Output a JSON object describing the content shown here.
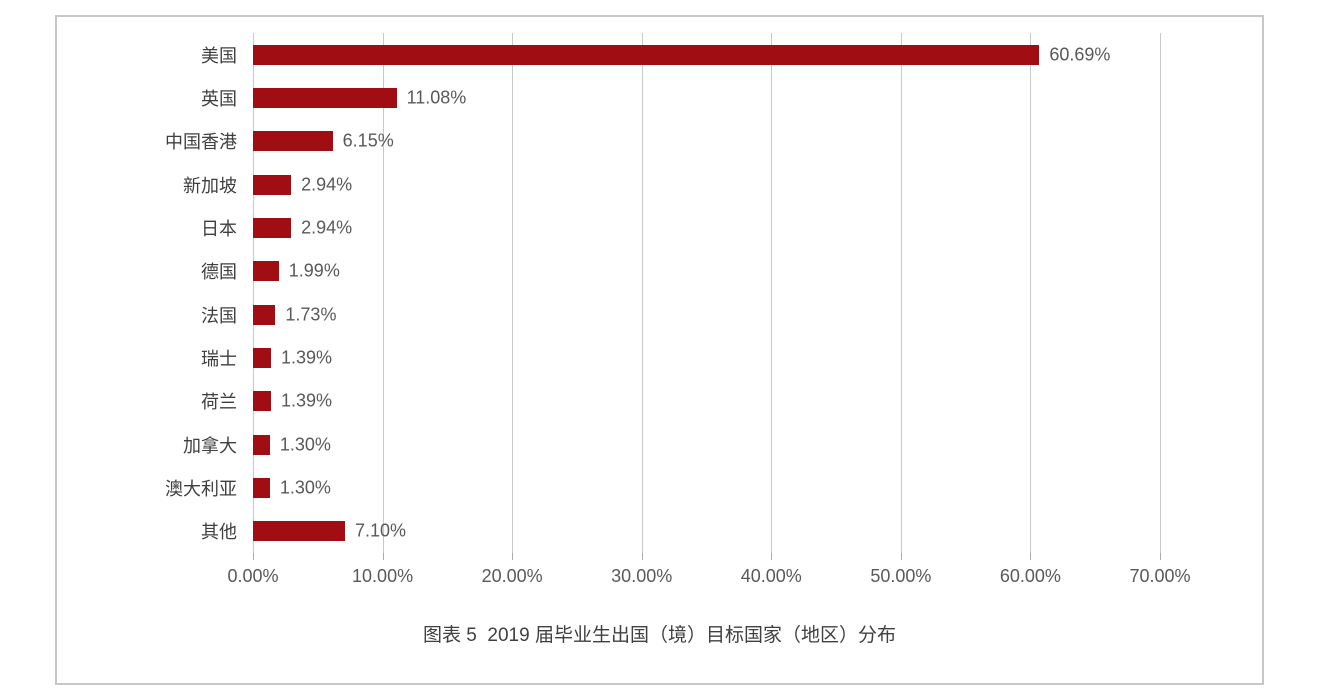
{
  "figure": {
    "caption": "图表 5  2019 届毕业生出国（境）目标国家（地区）分布"
  },
  "chart_data": {
    "type": "bar",
    "orientation": "horizontal",
    "title": "图表 5 2019 届毕业生出国（境）目标国家（地区）分布",
    "categories": [
      "美国",
      "英国",
      "中国香港",
      "新加坡",
      "日本",
      "德国",
      "法国",
      "瑞士",
      "荷兰",
      "加拿大",
      "澳大利亚",
      "其他"
    ],
    "values": [
      60.69,
      11.08,
      6.15,
      2.94,
      2.94,
      1.99,
      1.73,
      1.39,
      1.39,
      1.3,
      1.3,
      7.1
    ],
    "data_labels": [
      "60.69%",
      "11.08%",
      "6.15%",
      "2.94%",
      "2.94%",
      "1.99%",
      "1.73%",
      "1.39%",
      "1.39%",
      "1.30%",
      "1.30%",
      "7.10%"
    ],
    "x_ticks_values": [
      0,
      10,
      20,
      30,
      40,
      50,
      60,
      70
    ],
    "x_ticks_labels": [
      "0.00%",
      "10.00%",
      "20.00%",
      "30.00%",
      "40.00%",
      "50.00%",
      "60.00%",
      "70.00%"
    ],
    "xlim": [
      0,
      70
    ],
    "grid": "vertical",
    "legend": "none",
    "colors": {
      "bar": "#a00d12",
      "gridline": "#c9c9c9",
      "axis_text": "#595959",
      "category_text": "#3f3f3f",
      "caption_text": "#404040",
      "panel_border": "#c7c7c7"
    }
  }
}
